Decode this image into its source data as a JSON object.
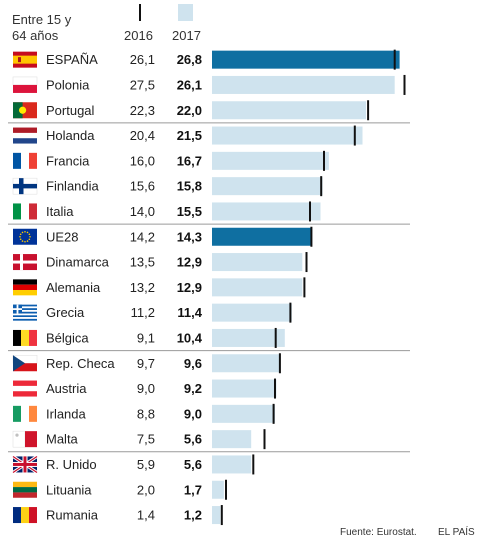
{
  "header": {
    "subtitle_line1": "Entre 15 y",
    "subtitle_line2": "64 años",
    "col_2016": "2016",
    "col_2017": "2017"
  },
  "footer": {
    "source": "Fuente: Eurostat.",
    "credit": "EL PAÍS"
  },
  "chart_data": {
    "type": "bar",
    "unit": "",
    "xlim": [
      0,
      27.5
    ],
    "colors": {
      "bar_default": "#cfe3ee",
      "bar_highlight": "#0f6fa1",
      "marker": "#111111",
      "divider": "#9a9a9a"
    },
    "legend": {
      "bar": "2017",
      "marker": "2016"
    },
    "rows": [
      {
        "country": "ESPAÑA",
        "flag": "flag-spain",
        "v2016": "26,1",
        "v2017": "26,8",
        "y2016": 26.1,
        "y2017": 26.8,
        "highlight": true
      },
      {
        "country": "Polonia",
        "flag": "flag-poland",
        "v2016": "27,5",
        "v2017": "26,1",
        "y2016": 27.5,
        "y2017": 26.1,
        "highlight": false
      },
      {
        "country": "Portugal",
        "flag": "flag-portugal",
        "v2016": "22,3",
        "v2017": "22,0",
        "y2016": 22.3,
        "y2017": 22.0,
        "highlight": false
      },
      {
        "country": "Holanda",
        "flag": "flag-netherlands",
        "v2016": "20,4",
        "v2017": "21,5",
        "y2016": 20.4,
        "y2017": 21.5,
        "highlight": false
      },
      {
        "country": "Francia",
        "flag": "flag-france",
        "v2016": "16,0",
        "v2017": "16,7",
        "y2016": 16.0,
        "y2017": 16.7,
        "highlight": false
      },
      {
        "country": "Finlandia",
        "flag": "flag-finland",
        "v2016": "15,6",
        "v2017": "15,8",
        "y2016": 15.6,
        "y2017": 15.8,
        "highlight": false
      },
      {
        "country": "Italia",
        "flag": "flag-italy",
        "v2016": "14,0",
        "v2017": "15,5",
        "y2016": 14.0,
        "y2017": 15.5,
        "highlight": false
      },
      {
        "country": "UE28",
        "flag": "flag-eu",
        "v2016": "14,2",
        "v2017": "14,3",
        "y2016": 14.2,
        "y2017": 14.3,
        "highlight": true
      },
      {
        "country": "Dinamarca",
        "flag": "flag-denmark",
        "v2016": "13,5",
        "v2017": "12,9",
        "y2016": 13.5,
        "y2017": 12.9,
        "highlight": false
      },
      {
        "country": "Alemania",
        "flag": "flag-germany",
        "v2016": "13,2",
        "v2017": "12,9",
        "y2016": 13.2,
        "y2017": 12.9,
        "highlight": false
      },
      {
        "country": "Grecia",
        "flag": "flag-greece",
        "v2016": "11,2",
        "v2017": "11,4",
        "y2016": 11.2,
        "y2017": 11.4,
        "highlight": false
      },
      {
        "country": "Bélgica",
        "flag": "flag-belgium",
        "v2016": "9,1",
        "v2017": "10,4",
        "y2016": 9.1,
        "y2017": 10.4,
        "highlight": false
      },
      {
        "country": "Rep. Checa",
        "flag": "flag-czech-republic",
        "v2016": "9,7",
        "v2017": "9,6",
        "y2016": 9.7,
        "y2017": 9.6,
        "highlight": false
      },
      {
        "country": "Austria",
        "flag": "flag-austria",
        "v2016": "9,0",
        "v2017": "9,2",
        "y2016": 9.0,
        "y2017": 9.2,
        "highlight": false
      },
      {
        "country": "Irlanda",
        "flag": "flag-ireland",
        "v2016": "8,8",
        "v2017": "9,0",
        "y2016": 8.8,
        "y2017": 9.0,
        "highlight": false
      },
      {
        "country": "Malta",
        "flag": "flag-malta",
        "v2016": "7,5",
        "v2017": "5,6",
        "y2016": 7.5,
        "y2017": 5.6,
        "highlight": false
      },
      {
        "country": "R. Unido",
        "flag": "flag-united-kingdom",
        "v2016": "5,9",
        "v2017": "5,6",
        "y2016": 5.9,
        "y2017": 5.6,
        "highlight": false
      },
      {
        "country": "Lituania",
        "flag": "flag-lithuania",
        "v2016": "2,0",
        "v2017": "1,7",
        "y2016": 2.0,
        "y2017": 1.7,
        "highlight": false
      },
      {
        "country": "Rumania",
        "flag": "flag-romania",
        "v2016": "1,4",
        "v2017": "1,2",
        "y2016": 1.4,
        "y2017": 1.2,
        "highlight": false
      }
    ],
    "dividers_after": [
      2,
      6,
      11,
      15
    ]
  }
}
